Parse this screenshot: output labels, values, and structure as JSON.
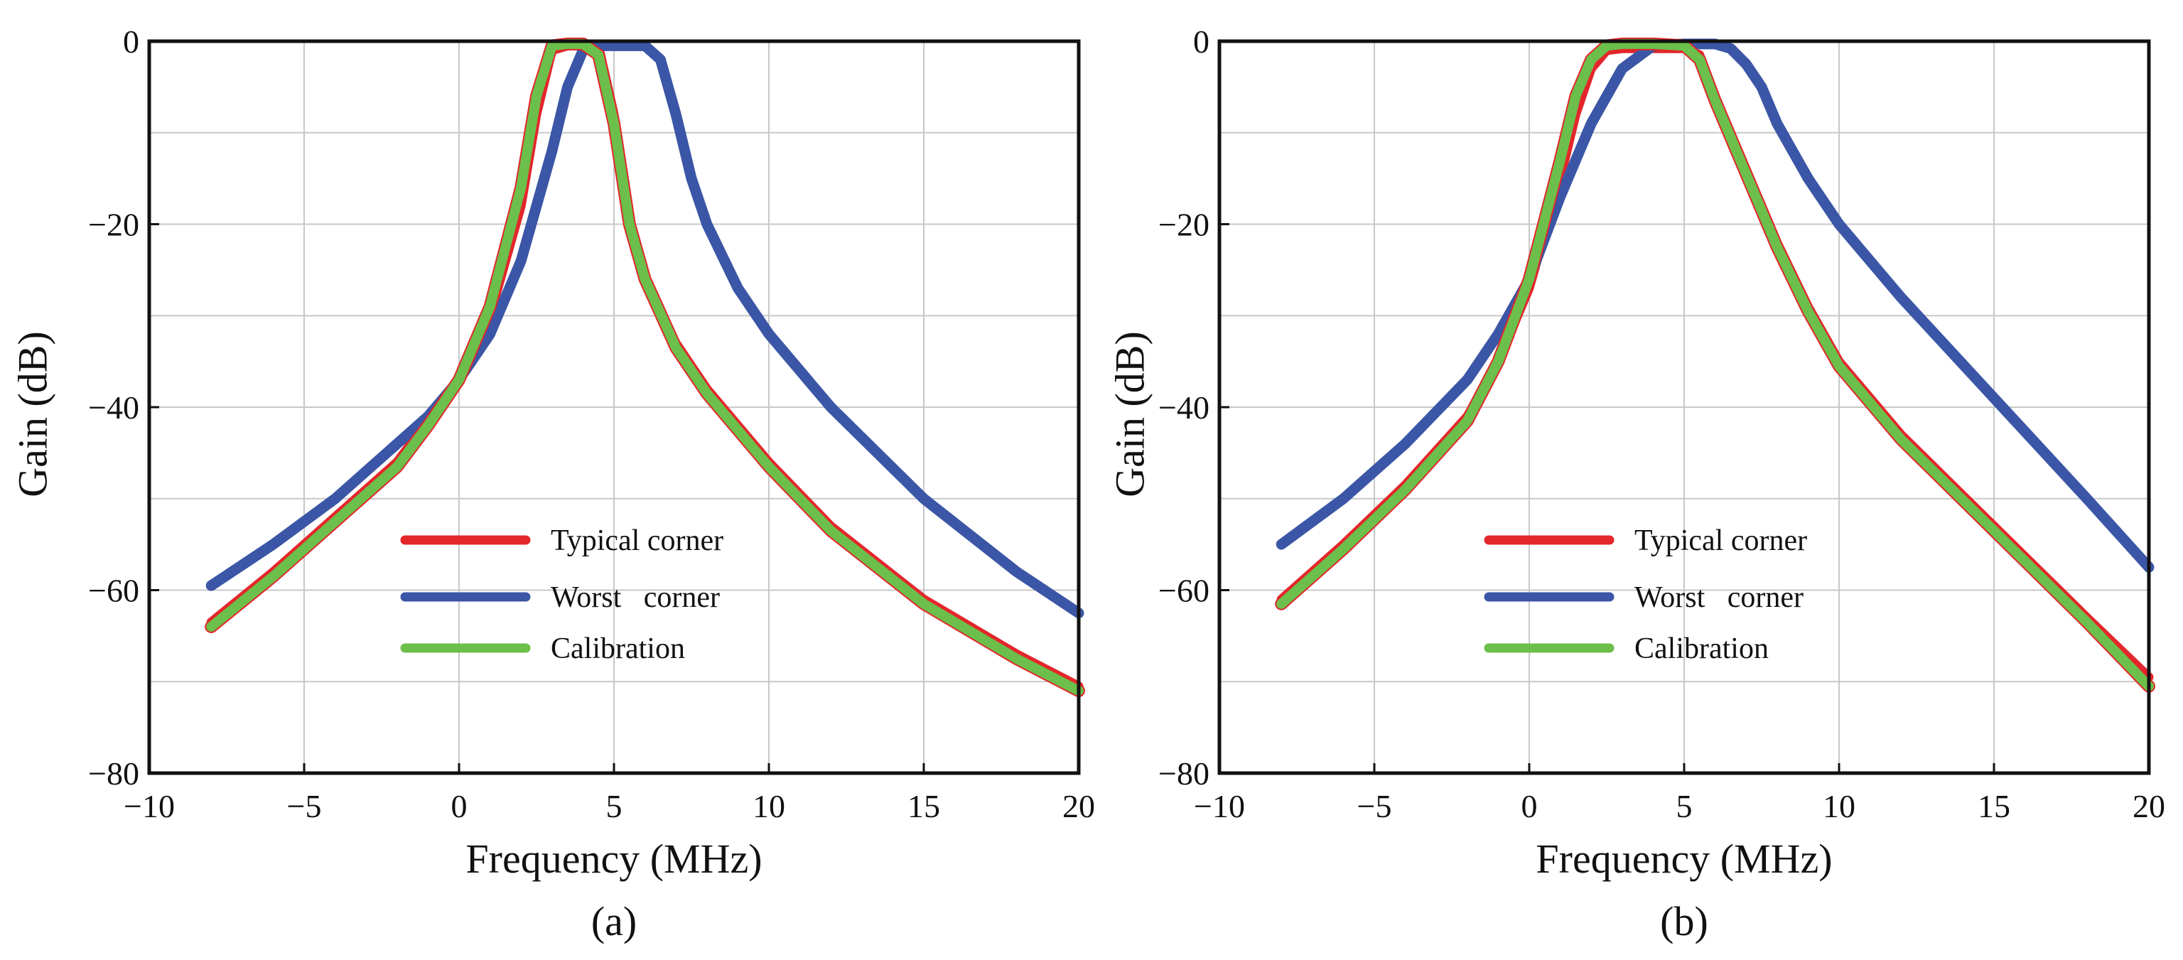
{
  "colors": {
    "typical": "#e3262b",
    "worst": "#3b56a6",
    "calibration": "#6cbf4a"
  },
  "chart_data": [
    {
      "type": "line",
      "panel_label": "(a)",
      "xlabel": "Frequency (MHz)",
      "ylabel": "Gain (dB)",
      "xlim": [
        -10,
        20
      ],
      "ylim": [
        -80,
        0
      ],
      "xticks": [
        -10,
        -5,
        0,
        5,
        10,
        15,
        20
      ],
      "xtick_labels": [
        "−10",
        "−5",
        "0",
        "5",
        "10",
        "15",
        "20"
      ],
      "yticks": [
        0,
        -20,
        -40,
        -60,
        -80
      ],
      "ytick_labels": [
        "0",
        "−20",
        "−40",
        "−60",
        "−80"
      ],
      "grid": true,
      "legend_position": "lower-center",
      "series": [
        {
          "name": "Typical corner",
          "color_key": "typical",
          "x": [
            -8,
            -6,
            -4,
            -2,
            -1,
            0,
            1,
            2,
            2.5,
            3,
            3.5,
            4,
            4.5,
            5,
            5.5,
            6,
            7,
            8,
            10,
            12,
            15,
            18,
            20
          ],
          "y": [
            -63.5,
            -58,
            -52,
            -46,
            -41.5,
            -37,
            -30,
            -18,
            -8,
            -1,
            -0.5,
            -0.5,
            -0.5,
            -8,
            -20,
            -26,
            -33,
            -38,
            -46,
            -53,
            -61,
            -67,
            -70.5
          ]
        },
        {
          "name": "Worst   corner",
          "color_key": "worst",
          "x": [
            -8,
            -6,
            -4,
            -2,
            -1,
            0,
            1,
            2,
            3,
            3.5,
            4,
            4.5,
            5,
            5.5,
            6,
            6.5,
            7,
            7.5,
            8,
            9,
            10,
            12,
            15,
            18,
            20
          ],
          "y": [
            -59.5,
            -55,
            -50,
            -44,
            -41,
            -37,
            -32,
            -24,
            -12,
            -5,
            -1,
            -0.5,
            -0.5,
            -0.5,
            -0.5,
            -2,
            -8,
            -15,
            -20,
            -27,
            -32,
            -40,
            -50,
            -58,
            -62.5
          ]
        },
        {
          "name": "Calibration",
          "color_key": "calibration",
          "x": [
            -8,
            -6,
            -4,
            -2,
            -1,
            0,
            1,
            2,
            2.5,
            3,
            3.5,
            4,
            4.5,
            5,
            5.5,
            6,
            7,
            8,
            10,
            12,
            15,
            18,
            20
          ],
          "y": [
            -64,
            -58.5,
            -52.5,
            -46.5,
            -42,
            -37,
            -29,
            -16,
            -6,
            -0.5,
            -0.3,
            -0.3,
            -1.5,
            -9,
            -20,
            -26,
            -33.5,
            -38.5,
            -46.5,
            -53.5,
            -61.5,
            -67.5,
            -71
          ]
        }
      ]
    },
    {
      "type": "line",
      "panel_label": "(b)",
      "xlabel": "Frequency (MHz)",
      "ylabel": "Gain (dB)",
      "xlim": [
        -10,
        20
      ],
      "ylim": [
        -80,
        0
      ],
      "xticks": [
        -10,
        -5,
        0,
        5,
        10,
        15,
        20
      ],
      "xtick_labels": [
        "−10",
        "−5",
        "0",
        "5",
        "10",
        "15",
        "20"
      ],
      "yticks": [
        0,
        -20,
        -40,
        -60,
        -80
      ],
      "ytick_labels": [
        "0",
        "−20",
        "−40",
        "−60",
        "−80"
      ],
      "grid": true,
      "legend_position": "lower-center",
      "series": [
        {
          "name": "Typical corner",
          "color_key": "typical",
          "x": [
            -8,
            -6,
            -4,
            -2,
            -1,
            0,
            1,
            1.5,
            2,
            2.5,
            3,
            4,
            5,
            5.5,
            6,
            6.5,
            7,
            8,
            9,
            10,
            12,
            15,
            18,
            20
          ],
          "y": [
            -61,
            -55,
            -48.5,
            -41,
            -35,
            -27,
            -15,
            -8,
            -3,
            -1,
            -0.8,
            -0.8,
            -0.8,
            -1.5,
            -6,
            -10,
            -14,
            -22,
            -29,
            -35,
            -43,
            -53,
            -63,
            -69.5
          ]
        },
        {
          "name": "Worst   corner",
          "color_key": "worst",
          "x": [
            -8,
            -6,
            -4,
            -2,
            -1,
            0,
            1,
            2,
            3,
            4,
            5,
            6,
            6.5,
            7,
            7.5,
            8,
            9,
            10,
            12,
            15,
            18,
            20
          ],
          "y": [
            -55,
            -50,
            -44,
            -37,
            -32,
            -26,
            -17,
            -9,
            -3,
            -0.5,
            -0.3,
            -0.3,
            -0.8,
            -2.5,
            -5,
            -9,
            -15,
            -20,
            -28,
            -39,
            -50,
            -57.5
          ]
        },
        {
          "name": "Calibration",
          "color_key": "calibration",
          "x": [
            -8,
            -6,
            -4,
            -2,
            -1,
            0,
            1,
            1.5,
            2,
            2.5,
            3,
            4,
            5,
            5.5,
            6,
            6.5,
            7,
            8,
            9,
            10,
            12,
            15,
            18,
            20
          ],
          "y": [
            -61.5,
            -55.5,
            -49,
            -41.5,
            -35,
            -26,
            -13,
            -6,
            -2,
            -0.5,
            -0.3,
            -0.3,
            -0.5,
            -2,
            -6.5,
            -10.5,
            -14.5,
            -22.5,
            -29.5,
            -35.5,
            -43.5,
            -53.5,
            -63.5,
            -70.5
          ]
        }
      ]
    }
  ]
}
